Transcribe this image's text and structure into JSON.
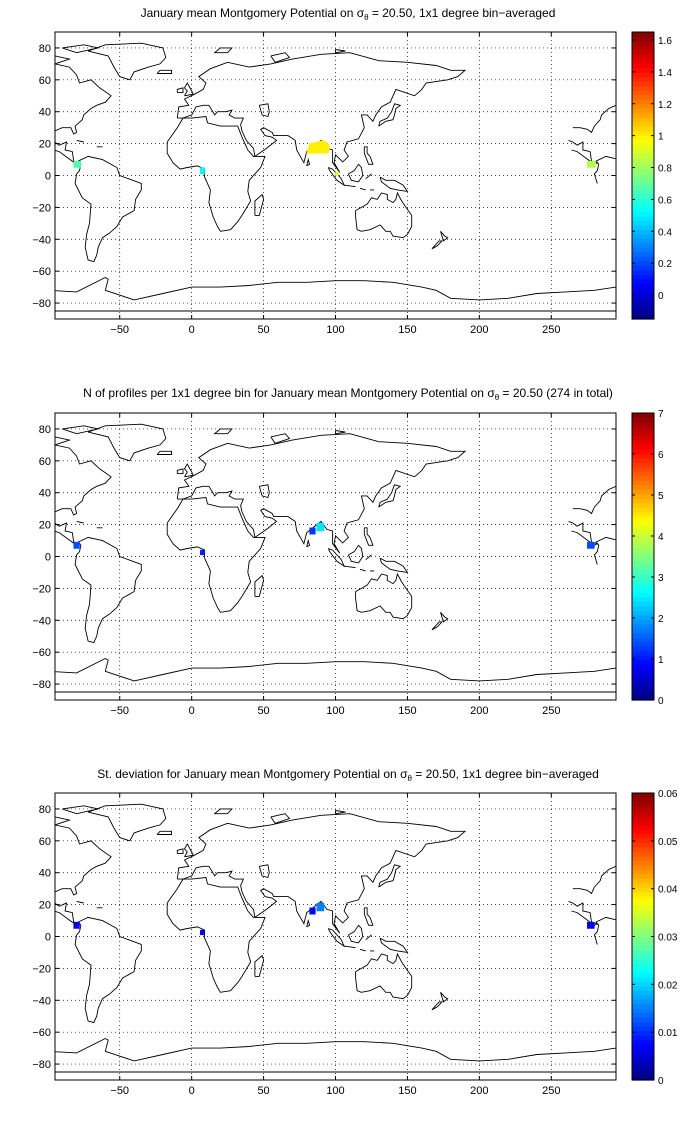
{
  "figure": {
    "panels": [
      {
        "id": "mean",
        "title_parts": [
          "January mean Montgomery Potential on ",
          "σ",
          "θ",
          " = 20.50, 1x1 degree bin−averaged"
        ],
        "colorbar_ticks": [
          "0",
          "0.2",
          "0.4",
          "0.6",
          "0.8",
          "1",
          "1.2",
          "1.4",
          "1.6"
        ],
        "colorbar_range": [
          -0.15,
          1.65
        ]
      },
      {
        "id": "count",
        "title_parts": [
          "N of profiles per 1x1 degree bin for January mean Montgomery Potential on ",
          "σ",
          "θ",
          " = 20.50 (274 in total)"
        ],
        "colorbar_ticks": [
          "0",
          "1",
          "2",
          "3",
          "4",
          "5",
          "6",
          "7"
        ],
        "colorbar_range": [
          0,
          7
        ]
      },
      {
        "id": "std",
        "title_parts": [
          "St. deviation for January mean Montgomery Potential on ",
          "σ",
          "θ",
          " = 20.50, 1x1 degree bin−averaged"
        ],
        "colorbar_ticks": [
          "0",
          "0.01",
          "0.02",
          "0.03",
          "0.04",
          "0.05",
          "0.06"
        ],
        "colorbar_range": [
          0,
          0.06
        ]
      }
    ],
    "x_ticks": [
      "-50",
      "0",
      "50",
      "100",
      "150",
      "200",
      "250"
    ],
    "y_ticks": [
      "80",
      "60",
      "40",
      "20",
      "0",
      "-20",
      "-40",
      "-60",
      "-80"
    ],
    "x_range": [
      -95,
      295
    ],
    "y_range": [
      -90,
      90
    ],
    "grid": "dotted",
    "colormap": "jet"
  }
}
